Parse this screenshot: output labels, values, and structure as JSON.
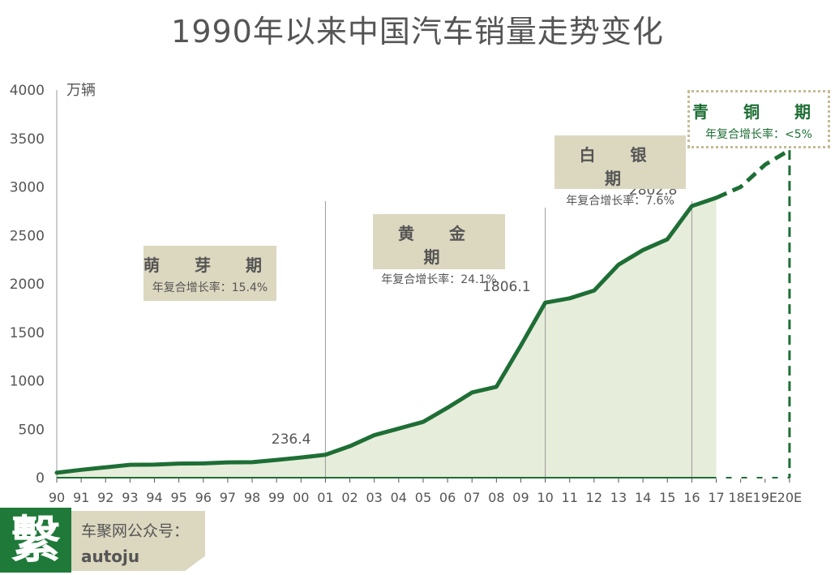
{
  "chart_data": {
    "type": "area",
    "title": "1990年以来中国汽车销量走势变化",
    "ylabel": "万辆",
    "xlabel": "",
    "ylim": [
      0,
      4000
    ],
    "y_ticks": [
      "0",
      "500",
      "1000",
      "1500",
      "2000",
      "2500",
      "3000",
      "3500",
      "4000"
    ],
    "categories": [
      "90",
      "91",
      "92",
      "93",
      "94",
      "95",
      "96",
      "97",
      "98",
      "99",
      "00",
      "01",
      "02",
      "03",
      "04",
      "05",
      "06",
      "07",
      "08",
      "09",
      "10",
      "11",
      "12",
      "13",
      "14",
      "15",
      "16",
      "17",
      "18E",
      "19E",
      "20E"
    ],
    "values": [
      51,
      81,
      107,
      133,
      135,
      145,
      147,
      158,
      160,
      183,
      208,
      236.4,
      325,
      439,
      507,
      576,
      722,
      879,
      938,
      1364,
      1806.1,
      1851,
      1931,
      2198,
      2349,
      2460,
      2802.8,
      2888,
      null,
      null,
      null
    ],
    "forecast_values": [
      2888,
      3000,
      3230,
      3380
    ],
    "forecast_start_index": 27,
    "data_labels": [
      {
        "index": 11,
        "text": "236.4"
      },
      {
        "index": 20,
        "text": "1806.1"
      },
      {
        "index": 26,
        "text": "2802.8"
      }
    ],
    "stage_dividers": [
      11,
      20,
      26,
      30
    ],
    "grid": false,
    "colors": {
      "line": "#1e6e35",
      "area": "#e7eddb",
      "box": "#dcd7bf",
      "bronze_border": "#c4bc95"
    }
  },
  "stages": [
    {
      "name": "萌 芽 期",
      "rate": "年复合增长率：15.4%"
    },
    {
      "name": "黄 金 期",
      "rate": "年复合增长率：24.1%"
    },
    {
      "name": "白 银 期",
      "rate": "年复合增长率：7.6%"
    },
    {
      "name": "青 铜 期",
      "rate": "年复合增长率：<5%"
    }
  ],
  "footer": {
    "logo_char": "繫",
    "label": "车聚网公众号：",
    "handle": "autoju"
  }
}
